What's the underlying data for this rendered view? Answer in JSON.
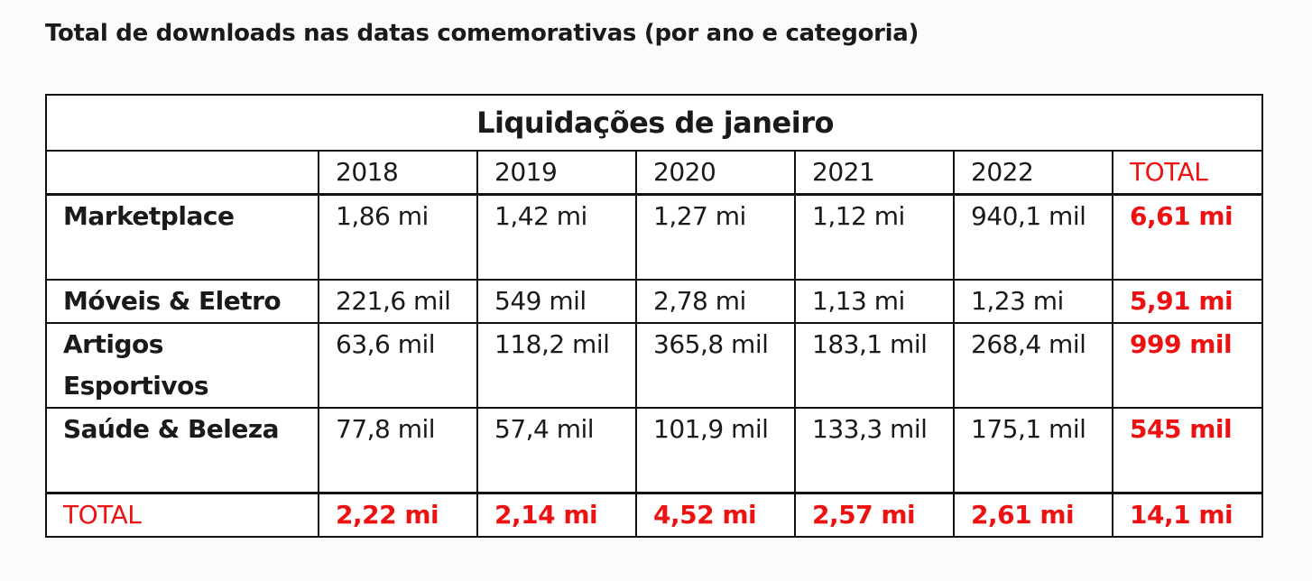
{
  "title": "Total de downloads nas datas comemorativas (por ano e categoria)",
  "table": {
    "caption": "Liquidações de janeiro",
    "columns": [
      "",
      "2018",
      "2019",
      "2020",
      "2021",
      "2022",
      "TOTAL"
    ],
    "rows": [
      {
        "label": "Marketplace",
        "values": [
          "1,86 mi",
          "1,42 mi",
          "1,27 mi",
          "1,12 mi",
          "940,1 mil",
          "6,61 mi"
        ]
      },
      {
        "label": "Móveis & Eletro",
        "values": [
          "221,6 mil",
          "549 mil",
          "2,78 mi",
          "1,13 mi",
          "1,23 mi",
          "5,91 mi"
        ]
      },
      {
        "label": "Artigos Esportivos",
        "values": [
          "63,6 mil",
          "118,2 mil",
          "365,8 mil",
          "183,1 mil",
          "268,4 mil",
          "999 mil"
        ]
      },
      {
        "label": "Saúde & Beleza",
        "values": [
          "77,8 mil",
          "57,4 mil",
          "101,9 mil",
          "133,3 mil",
          "175,1 mil",
          "545 mil"
        ]
      }
    ],
    "total_row": {
      "label": "TOTAL",
      "values": [
        "2,22 mi",
        "2,14 mi",
        "4,52 mi",
        "2,57 mi",
        "2,61 mi",
        "14,1 mi"
      ]
    }
  },
  "colors": {
    "accent_red": "#ee1111",
    "border": "#111111",
    "text": "#1a1a1a"
  }
}
